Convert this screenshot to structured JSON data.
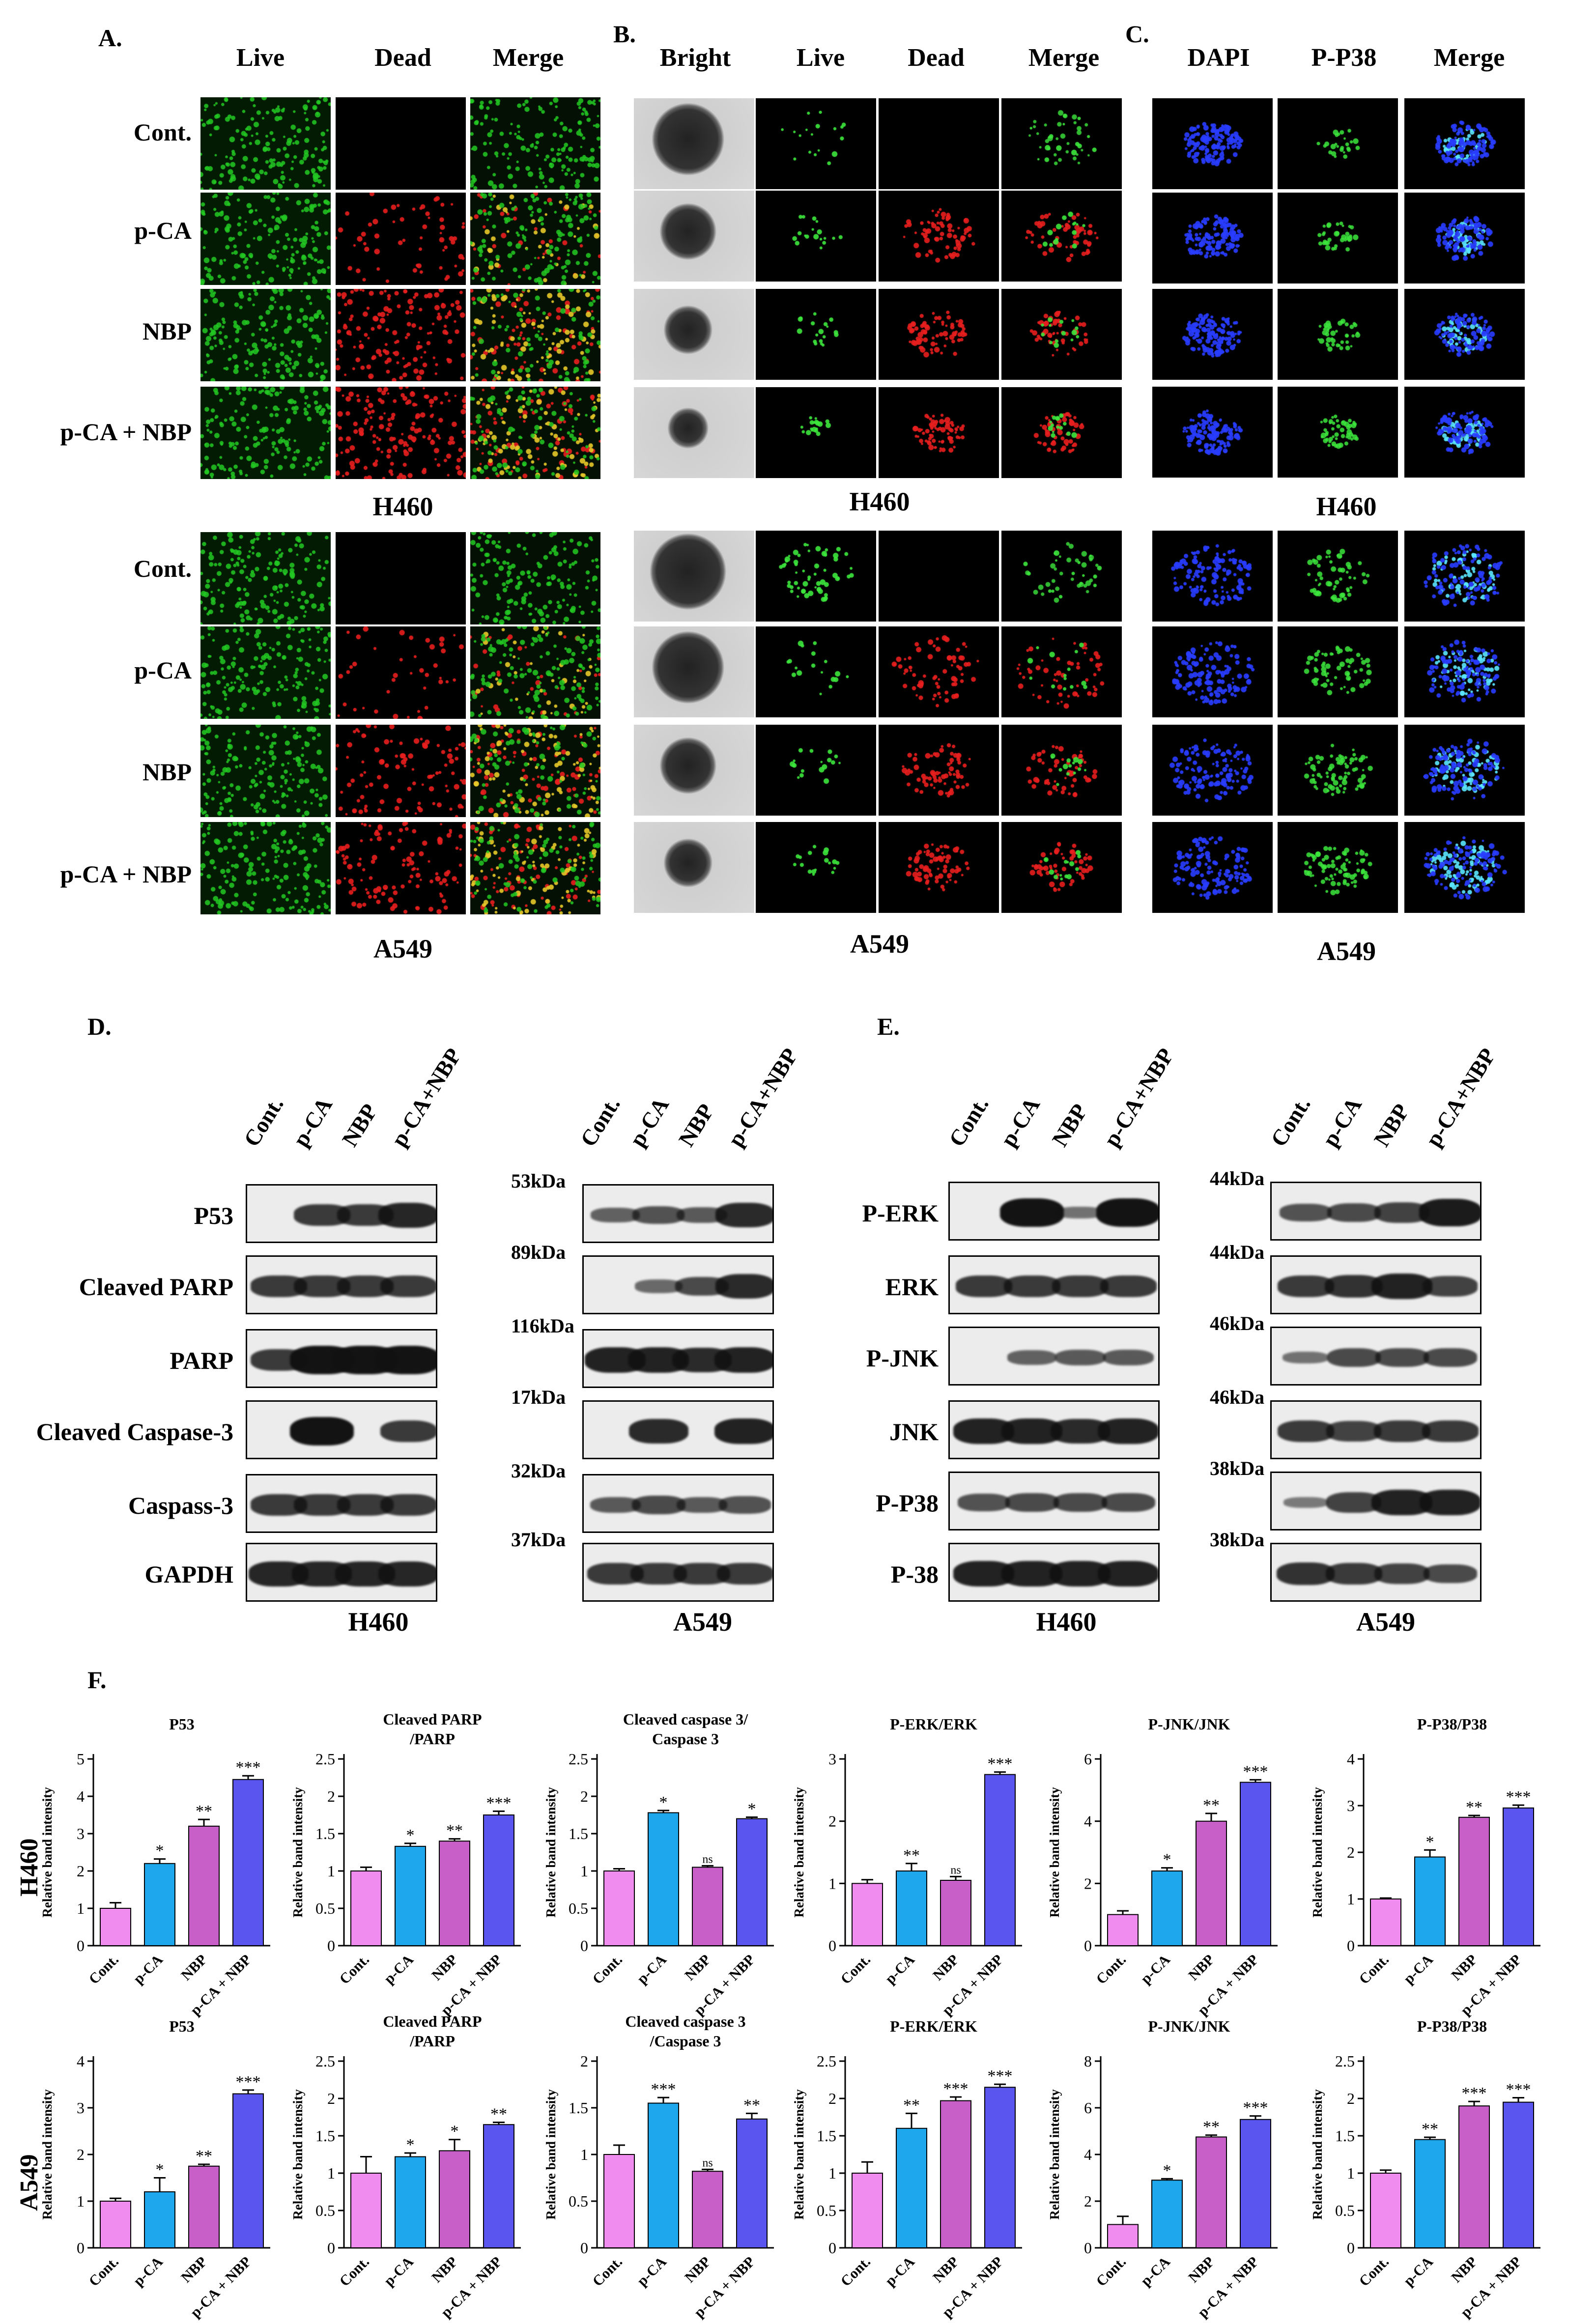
{
  "panelA": {
    "letter": "A.",
    "headers": [
      "Live",
      "Dead",
      "Merge"
    ],
    "rows": [
      "Cont.",
      "p-CA",
      "NBP",
      "p-CA + NBP"
    ],
    "cell_lines": [
      "H460",
      "A549"
    ]
  },
  "panelB": {
    "letter": "B.",
    "headers": [
      "Bright",
      "Live",
      "Dead",
      "Merge"
    ],
    "cell_lines": [
      "H460",
      "A549"
    ]
  },
  "panelC": {
    "letter": "C.",
    "headers": [
      "DAPI",
      "P-P38",
      "Merge"
    ],
    "cell_lines": [
      "H460",
      "A549"
    ]
  },
  "panelD": {
    "letter": "D.",
    "lanes": [
      "Cont.",
      "p-CA",
      "NBP",
      "p-CA+NBP"
    ],
    "proteins": [
      "P53",
      "Cleaved PARP",
      "PARP",
      "Cleaved Caspase-3",
      "Caspass-3",
      "GAPDH"
    ],
    "kda": [
      "53kDa",
      "89kDa",
      "116kDa",
      "17kDa",
      "32kDa",
      "37kDa"
    ],
    "cell_lines": [
      "H460",
      "A549"
    ]
  },
  "panelE": {
    "letter": "E.",
    "lanes": [
      "Cont.",
      "p-CA",
      "NBP",
      "p-CA+NBP"
    ],
    "proteins": [
      "P-ERK",
      "ERK",
      "P-JNK",
      "JNK",
      "P-P38",
      "P-38"
    ],
    "kda": [
      "44kDa",
      "44kDa",
      "46kDa",
      "46kDa",
      "38kDa",
      "38kDa"
    ],
    "cell_lines": [
      "H460",
      "A549"
    ]
  },
  "panelF": {
    "letter": "F.",
    "row_labels": [
      "H460",
      "A549"
    ]
  },
  "colors": {
    "bar": [
      "#f08cf0",
      "#1ea7ec",
      "#c85ec8",
      "#5b55f0"
    ],
    "live": "#22c922",
    "dead": "#e81e1e",
    "dapi": "#1e3cff"
  },
  "chart_data": [
    {
      "type": "bar",
      "row": "H460",
      "title": "P53",
      "ylabel": "Relative band intensity",
      "categories": [
        "Cont.",
        "p-CA",
        "NBP",
        "p-CA + NBP"
      ],
      "values": [
        1.0,
        2.2,
        3.2,
        4.45
      ],
      "errors": [
        0.15,
        0.12,
        0.18,
        0.1
      ],
      "sig": [
        "",
        "*",
        "**",
        "***"
      ],
      "ylim": [
        0,
        5
      ],
      "ticks": [
        0,
        1,
        2,
        3,
        4,
        5
      ]
    },
    {
      "type": "bar",
      "row": "H460",
      "title": "Cleaved PARP /PARP",
      "ylabel": "Relative band intensity",
      "categories": [
        "Cont.",
        "p-CA",
        "NBP",
        "p-CA + NBP"
      ],
      "values": [
        1.0,
        1.33,
        1.4,
        1.75
      ],
      "errors": [
        0.05,
        0.04,
        0.03,
        0.05
      ],
      "sig": [
        "",
        "*",
        "**",
        "***"
      ],
      "ylim": [
        0,
        2.5
      ],
      "ticks": [
        0,
        0.5,
        1.0,
        1.5,
        2.0,
        2.5
      ]
    },
    {
      "type": "bar",
      "row": "H460",
      "title": "Cleaved caspase 3/ Caspase 3",
      "ylabel": "Relative band intensity",
      "categories": [
        "Cont.",
        "p-CA",
        "NBP",
        "p-CA + NBP"
      ],
      "values": [
        1.0,
        1.78,
        1.05,
        1.7
      ],
      "errors": [
        0.03,
        0.03,
        0.02,
        0.02
      ],
      "sig": [
        "",
        "*",
        "ns",
        "*"
      ],
      "ylim": [
        0,
        2.5
      ],
      "ticks": [
        0,
        0.5,
        1.0,
        1.5,
        2.0,
        2.5
      ]
    },
    {
      "type": "bar",
      "row": "H460",
      "title": "P-ERK/ERK",
      "ylabel": "Relative band intensity",
      "categories": [
        "Cont.",
        "p-CA",
        "NBP",
        "p-CA + NBP"
      ],
      "values": [
        1.0,
        1.2,
        1.05,
        2.75
      ],
      "errors": [
        0.06,
        0.12,
        0.06,
        0.04
      ],
      "sig": [
        "",
        "**",
        "ns",
        "***"
      ],
      "ylim": [
        0,
        3
      ],
      "ticks": [
        0,
        1,
        2,
        3
      ]
    },
    {
      "type": "bar",
      "row": "H460",
      "title": "P-JNK/JNK",
      "ylabel": "Relative band intensity",
      "categories": [
        "Cont.",
        "p-CA",
        "NBP",
        "p-CA + NBP"
      ],
      "values": [
        1.0,
        2.4,
        4.0,
        5.25
      ],
      "errors": [
        0.12,
        0.1,
        0.25,
        0.08
      ],
      "sig": [
        "",
        "*",
        "**",
        "***"
      ],
      "ylim": [
        0,
        6
      ],
      "ticks": [
        0,
        2,
        4,
        6
      ]
    },
    {
      "type": "bar",
      "row": "H460",
      "title": "P-P38/P38",
      "ylabel": "Relative band intensity",
      "categories": [
        "Cont.",
        "p-CA",
        "NBP",
        "p-CA + NBP"
      ],
      "values": [
        1.0,
        1.9,
        2.75,
        2.95
      ],
      "errors": [
        0.02,
        0.15,
        0.04,
        0.06
      ],
      "sig": [
        "",
        "*",
        "**",
        "***"
      ],
      "ylim": [
        0,
        4
      ],
      "ticks": [
        0,
        1,
        2,
        3,
        4
      ]
    },
    {
      "type": "bar",
      "row": "A549",
      "title": "P53",
      "ylabel": "Relative band intensity",
      "categories": [
        "Cont.",
        "p-CA",
        "NBP",
        "p-CA + NBP"
      ],
      "values": [
        1.0,
        1.2,
        1.75,
        3.3
      ],
      "errors": [
        0.06,
        0.3,
        0.04,
        0.08
      ],
      "sig": [
        "",
        "*",
        "**",
        "***"
      ],
      "ylim": [
        0,
        4
      ],
      "ticks": [
        0,
        1,
        2,
        3,
        4
      ]
    },
    {
      "type": "bar",
      "row": "A549",
      "title": "Cleaved PARP /PARP",
      "ylabel": "Relative band intensity",
      "categories": [
        "Cont.",
        "p-CA",
        "NBP",
        "p-CA + NBP"
      ],
      "values": [
        1.0,
        1.22,
        1.3,
        1.65
      ],
      "errors": [
        0.22,
        0.05,
        0.15,
        0.03
      ],
      "sig": [
        "",
        "*",
        "*",
        "**"
      ],
      "ylim": [
        0,
        2.5
      ],
      "ticks": [
        0,
        0.5,
        1.0,
        1.5,
        2.0,
        2.5
      ]
    },
    {
      "type": "bar",
      "row": "A549",
      "title": "Cleaved caspase 3 /Caspase 3",
      "ylabel": "Relative band intensity",
      "categories": [
        "Cont.",
        "p-CA",
        "NBP",
        "p-CA + NBP"
      ],
      "values": [
        1.0,
        1.55,
        0.82,
        1.38
      ],
      "errors": [
        0.1,
        0.06,
        0.02,
        0.06
      ],
      "sig": [
        "",
        "***",
        "ns",
        "**"
      ],
      "ylim": [
        0,
        2.0
      ],
      "ticks": [
        0,
        0.5,
        1.0,
        1.5,
        2.0
      ]
    },
    {
      "type": "bar",
      "row": "A549",
      "title": "P-ERK/ERK",
      "ylabel": "Relative band intensity",
      "categories": [
        "Cont.",
        "p-CA",
        "NBP",
        "p-CA + NBP"
      ],
      "values": [
        1.0,
        1.6,
        1.97,
        2.15
      ],
      "errors": [
        0.15,
        0.2,
        0.05,
        0.04
      ],
      "sig": [
        "",
        "**",
        "***",
        "***"
      ],
      "ylim": [
        0,
        2.5
      ],
      "ticks": [
        0,
        0.5,
        1.0,
        1.5,
        2.0,
        2.5
      ]
    },
    {
      "type": "bar",
      "row": "A549",
      "title": "P-JNK/JNK",
      "ylabel": "Relative band intensity",
      "categories": [
        "Cont.",
        "p-CA",
        "NBP",
        "p-CA + NBP"
      ],
      "values": [
        1.0,
        2.9,
        4.75,
        5.5
      ],
      "errors": [
        0.35,
        0.06,
        0.08,
        0.15
      ],
      "sig": [
        "",
        "*",
        "**",
        "***"
      ],
      "ylim": [
        0,
        8
      ],
      "ticks": [
        0,
        2,
        4,
        6,
        8
      ]
    },
    {
      "type": "bar",
      "row": "A549",
      "title": "P-P38/P38",
      "ylabel": "Relative band intensity",
      "categories": [
        "Cont.",
        "p-CA",
        "NBP",
        "p-CA + NBP"
      ],
      "values": [
        1.0,
        1.45,
        1.9,
        1.95
      ],
      "errors": [
        0.04,
        0.03,
        0.06,
        0.06
      ],
      "sig": [
        "",
        "**",
        "***",
        "***"
      ],
      "ylim": [
        0,
        2.5
      ],
      "ticks": [
        0,
        0.5,
        1.0,
        1.5,
        2.0,
        2.5
      ]
    }
  ]
}
